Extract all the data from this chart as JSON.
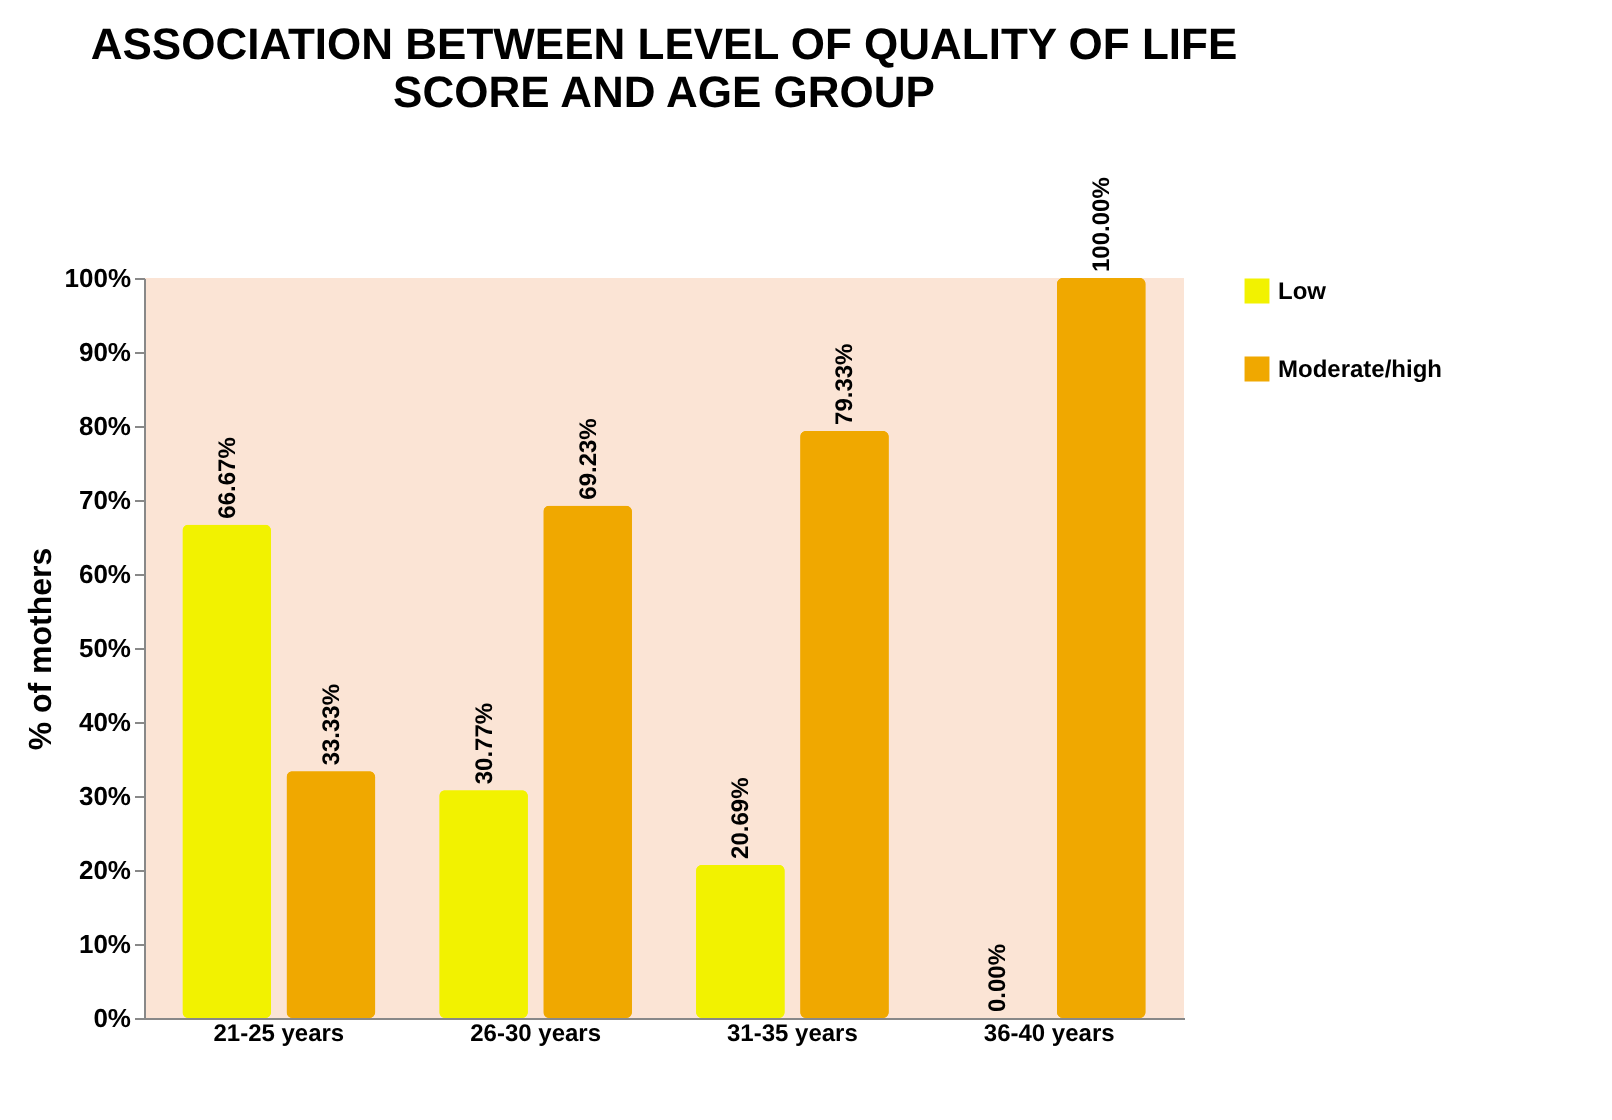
{
  "chart_data": {
    "type": "bar",
    "title": "ASSOCIATION BETWEEN LEVEL OF QUALITY OF LIFE SCORE AND AGE GROUP",
    "ylabel": "% of mothers",
    "categories": [
      "21-25 years",
      "26-30 years",
      "31-35 years",
      "36-40 years"
    ],
    "series": [
      {
        "name": "Low",
        "color": "#f2f200",
        "values": [
          66.67,
          30.77,
          20.69,
          0
        ],
        "value_labels": [
          "66.67%",
          "30.77%",
          "20.69%",
          "0.00%"
        ]
      },
      {
        "name": "Moderate/high",
        "color": "#f0a800",
        "values": [
          33.33,
          69.23,
          79.33,
          100
        ],
        "value_labels": [
          "33.33%",
          "69.23%",
          "79.33%",
          "100.00%"
        ]
      }
    ],
    "ylim": [
      0,
      100
    ],
    "yticks": [
      {
        "value": 0,
        "label": "0%"
      },
      {
        "value": 10,
        "label": "10%"
      },
      {
        "value": 20,
        "label": "20%"
      },
      {
        "value": 30,
        "label": "30%"
      },
      {
        "value": 40,
        "label": "40%"
      },
      {
        "value": 50,
        "label": "50%"
      },
      {
        "value": 60,
        "label": "60%"
      },
      {
        "value": 70,
        "label": "70%"
      },
      {
        "value": 80,
        "label": "80%"
      },
      {
        "value": 90,
        "label": "90%"
      },
      {
        "value": 100,
        "label": "100%"
      }
    ],
    "grid": false,
    "legend": "right"
  }
}
